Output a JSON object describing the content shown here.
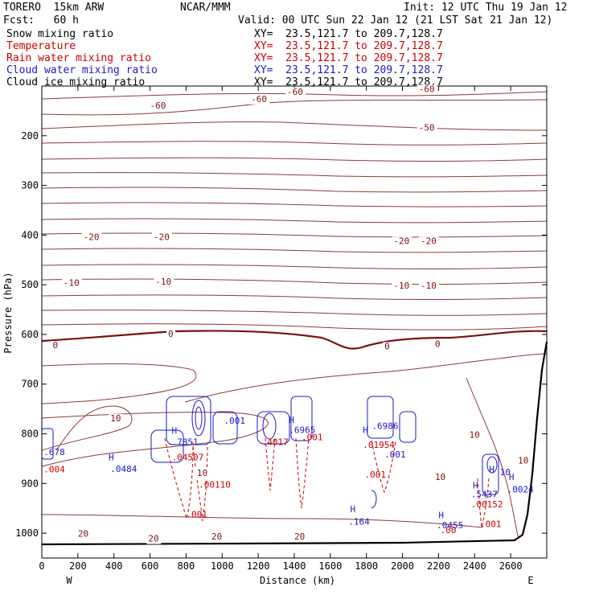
{
  "header": {
    "model": "TORERO  15km ARW",
    "center": "NCAR/MMM",
    "init": "Init: 12 UTC Thu 19 Jan 12",
    "fcst": "Fcst:   60 h",
    "valid": "Valid: 00 UTC Sun 22 Jan 12 (21 LST Sat 21 Jan 12)",
    "fields": [
      {
        "name": "Snow mixing ratio",
        "color": "#000000",
        "xy": "XY=  23.5,121.7 to 209.7,128.7"
      },
      {
        "name": "Temperature",
        "color": "#cc0000",
        "xy": "XY=  23.5,121.7 to 209.7,128.7"
      },
      {
        "name": "Rain water mixing ratio",
        "color": "#cc0000",
        "xy": "XY=  23.5,121.7 to 209.7,128.7"
      },
      {
        "name": "Cloud water mixing ratio",
        "color": "#1a1acc",
        "xy": "XY=  23.5,121.7 to 209.7,128.7"
      },
      {
        "name": "Cloud ice mixing ratio",
        "color": "#000000",
        "xy": "XY=  23.5,121.7 to 209.7,128.7"
      }
    ]
  },
  "chart_data": {
    "type": "contour",
    "xlabel": "Distance (km)",
    "ylabel": "Pressure (hPa)",
    "xlim": [
      0,
      2800
    ],
    "ylim": [
      1050,
      100
    ],
    "x_ticks": [
      0,
      200,
      400,
      600,
      800,
      1000,
      1200,
      1400,
      1600,
      1800,
      2000,
      2200,
      2400,
      2600
    ],
    "y_ticks": [
      200,
      300,
      400,
      500,
      600,
      700,
      800,
      900,
      1000
    ],
    "x_end_labels": {
      "left": "W",
      "right": "E"
    },
    "temperature_colors": {
      "isotherm": "#8b3a3a",
      "zero": "#7a1010"
    },
    "temperature_labels": [
      {
        "x": 600,
        "p": 145,
        "text": "-60"
      },
      {
        "x": 1160,
        "p": 132,
        "text": "-60"
      },
      {
        "x": 1360,
        "p": 118,
        "text": "-60"
      },
      {
        "x": 2090,
        "p": 112,
        "text": "-60"
      },
      {
        "x": 2090,
        "p": 190,
        "text": "-50"
      },
      {
        "x": 230,
        "p": 410,
        "text": "-20"
      },
      {
        "x": 620,
        "p": 410,
        "text": "-20"
      },
      {
        "x": 1950,
        "p": 418,
        "text": "-20"
      },
      {
        "x": 2100,
        "p": 418,
        "text": "-20"
      },
      {
        "x": 120,
        "p": 502,
        "text": "-10"
      },
      {
        "x": 630,
        "p": 500,
        "text": "-10"
      },
      {
        "x": 1950,
        "p": 508,
        "text": "-10"
      },
      {
        "x": 2100,
        "p": 508,
        "text": "-10"
      },
      {
        "x": 60,
        "p": 628,
        "text": "0"
      },
      {
        "x": 700,
        "p": 605,
        "text": "0"
      },
      {
        "x": 1900,
        "p": 630,
        "text": "0"
      },
      {
        "x": 2180,
        "p": 625,
        "text": "0"
      },
      {
        "x": 380,
        "p": 775,
        "text": "10"
      },
      {
        "x": 2370,
        "p": 808,
        "text": "10"
      },
      {
        "x": 2180,
        "p": 893,
        "text": "10"
      },
      {
        "x": 2640,
        "p": 860,
        "text": "10"
      },
      {
        "x": 860,
        "p": 885,
        "text": "10"
      },
      {
        "x": 200,
        "p": 1007,
        "text": "20"
      },
      {
        "x": 590,
        "p": 1017,
        "text": "20"
      },
      {
        "x": 940,
        "p": 1013,
        "text": "20"
      },
      {
        "x": 1400,
        "p": 1013,
        "text": "20"
      }
    ],
    "mixing_ratio_labels": [
      {
        "x": 10,
        "p": 843,
        "text": ".678",
        "color": "#1a1acc"
      },
      {
        "x": 10,
        "p": 878,
        "text": ".004",
        "color": "#cc0000"
      },
      {
        "x": 370,
        "p": 853,
        "text": "H",
        "color": "#1a1acc"
      },
      {
        "x": 380,
        "p": 877,
        "text": ".0484",
        "color": "#1a1acc"
      },
      {
        "x": 720,
        "p": 800,
        "text": "H",
        "color": "#1a1acc"
      },
      {
        "x": 720,
        "p": 823,
        "text": ".7851",
        "color": "#1a1acc"
      },
      {
        "x": 720,
        "p": 853,
        "text": ".04507",
        "color": "#cc0000"
      },
      {
        "x": 870,
        "p": 908,
        "text": ".00110",
        "color": "#cc0000"
      },
      {
        "x": 800,
        "p": 968,
        "text": ".001",
        "color": "#cc0000"
      },
      {
        "x": 1010,
        "p": 780,
        "text": ".001",
        "color": "#1a1acc"
      },
      {
        "x": 1220,
        "p": 823,
        "text": ".4017",
        "color": "#cc0000"
      },
      {
        "x": 1370,
        "p": 778,
        "text": "H",
        "color": "#1a1acc"
      },
      {
        "x": 1370,
        "p": 798,
        "text": ".6965",
        "color": "#1a1acc"
      },
      {
        "x": 1440,
        "p": 813,
        "text": ".001",
        "color": "#cc0000"
      },
      {
        "x": 1780,
        "p": 798,
        "text": "H",
        "color": "#1a1acc"
      },
      {
        "x": 1830,
        "p": 790,
        "text": ".6986",
        "color": "#1a1acc"
      },
      {
        "x": 1780,
        "p": 828,
        "text": ".01954",
        "color": "#cc0000"
      },
      {
        "x": 1900,
        "p": 848,
        "text": ".001",
        "color": "#1a1acc"
      },
      {
        "x": 1790,
        "p": 888,
        "text": ".001",
        "color": "#cc0000"
      },
      {
        "x": 1710,
        "p": 958,
        "text": "H",
        "color": "#1a1acc"
      },
      {
        "x": 1700,
        "p": 983,
        "text": ".164",
        "color": "#1a1acc"
      },
      {
        "x": 2200,
        "p": 970,
        "text": "H",
        "color": "#1a1acc"
      },
      {
        "x": 2190,
        "p": 990,
        "text": ".0455",
        "color": "#1a1acc"
      },
      {
        "x": 2210,
        "p": 1000,
        "text": ".00",
        "color": "#cc0000"
      },
      {
        "x": 2390,
        "p": 910,
        "text": "H",
        "color": "#1a1acc"
      },
      {
        "x": 2380,
        "p": 928,
        "text": ".5437",
        "color": "#1a1acc"
      },
      {
        "x": 2380,
        "p": 948,
        "text": ".00152",
        "color": "#cc0000"
      },
      {
        "x": 2430,
        "p": 988,
        "text": ".001",
        "color": "#cc0000"
      },
      {
        "x": 2590,
        "p": 893,
        "text": "H",
        "color": "#1a1acc"
      },
      {
        "x": 2580,
        "p": 918,
        "text": ".0024",
        "color": "#1a1acc"
      },
      {
        "x": 2480,
        "p": 878,
        "text": "H",
        "color": "#1a1acc"
      },
      {
        "x": 2540,
        "p": 883,
        "text": "10",
        "color": "#1a1acc"
      }
    ]
  }
}
